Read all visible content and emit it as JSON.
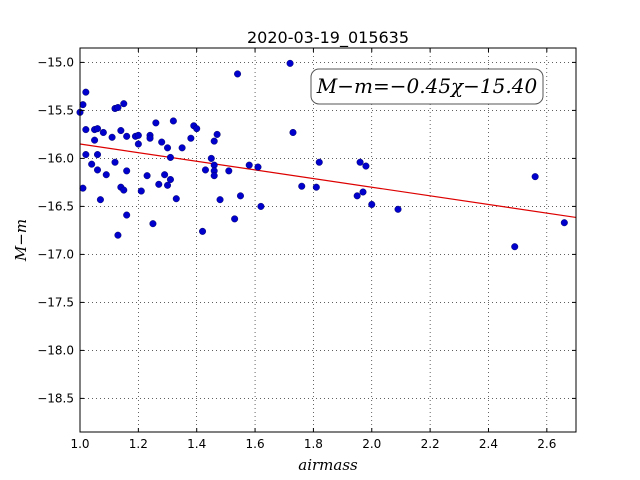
{
  "chart_data": {
    "type": "scatter",
    "title": "2020-03-19_015635",
    "xlabel": "airmass",
    "ylabel": "M−m",
    "xlim": [
      1.0,
      2.7
    ],
    "ylim": [
      -18.85,
      -14.85
    ],
    "y_inverted": false,
    "grid": true,
    "xticks": [
      1.0,
      1.2,
      1.4,
      1.6,
      1.8,
      2.0,
      2.2,
      2.4,
      2.6
    ],
    "xtick_labels": [
      "1.0",
      "1.2",
      "1.4",
      "1.6",
      "1.8",
      "2.0",
      "2.2",
      "2.4",
      "2.6"
    ],
    "yticks": [
      -15.0,
      -15.5,
      -16.0,
      -16.5,
      -17.0,
      -17.5,
      -18.0,
      -18.5
    ],
    "ytick_labels": [
      "−15.0",
      "−15.5",
      "−16.0",
      "−16.5",
      "−17.0",
      "−17.5",
      "−18.0",
      "−18.5"
    ],
    "point_color": "#0000cc",
    "line_color": "#dd0000",
    "fit": {
      "slope": -0.45,
      "intercept": -15.4,
      "x_range": [
        1.0,
        2.7
      ]
    },
    "annotation": "M−m=−0.45χ−15.40",
    "points": [
      [
        1.0,
        -15.52
      ],
      [
        1.01,
        -15.44
      ],
      [
        1.02,
        -15.31
      ],
      [
        1.01,
        -16.31
      ],
      [
        1.02,
        -15.7
      ],
      [
        1.02,
        -15.96
      ],
      [
        1.04,
        -16.06
      ],
      [
        1.05,
        -15.7
      ],
      [
        1.06,
        -15.69
      ],
      [
        1.05,
        -15.81
      ],
      [
        1.06,
        -15.96
      ],
      [
        1.06,
        -16.12
      ],
      [
        1.07,
        -16.43
      ],
      [
        1.08,
        -15.73
      ],
      [
        1.09,
        -16.17
      ],
      [
        1.11,
        -15.78
      ],
      [
        1.12,
        -15.48
      ],
      [
        1.12,
        -16.04
      ],
      [
        1.13,
        -15.47
      ],
      [
        1.14,
        -15.71
      ],
      [
        1.15,
        -15.43
      ],
      [
        1.13,
        -16.8
      ],
      [
        1.14,
        -16.3
      ],
      [
        1.15,
        -16.33
      ],
      [
        1.16,
        -16.59
      ],
      [
        1.16,
        -15.77
      ],
      [
        1.16,
        -16.13
      ],
      [
        1.19,
        -15.77
      ],
      [
        1.2,
        -15.76
      ],
      [
        1.2,
        -15.85
      ],
      [
        1.21,
        -16.34
      ],
      [
        1.23,
        -16.18
      ],
      [
        1.24,
        -15.76
      ],
      [
        1.24,
        -15.79
      ],
      [
        1.25,
        -16.68
      ],
      [
        1.26,
        -15.63
      ],
      [
        1.27,
        -16.27
      ],
      [
        1.28,
        -15.83
      ],
      [
        1.29,
        -16.17
      ],
      [
        1.3,
        -16.28
      ],
      [
        1.3,
        -15.89
      ],
      [
        1.31,
        -16.22
      ],
      [
        1.31,
        -15.99
      ],
      [
        1.32,
        -15.61
      ],
      [
        1.33,
        -16.42
      ],
      [
        1.35,
        -15.89
      ],
      [
        1.38,
        -15.79
      ],
      [
        1.39,
        -15.66
      ],
      [
        1.4,
        -15.69
      ],
      [
        1.42,
        -16.76
      ],
      [
        1.43,
        -16.12
      ],
      [
        1.45,
        -16.0
      ],
      [
        1.46,
        -15.82
      ],
      [
        1.46,
        -16.07
      ],
      [
        1.46,
        -16.13
      ],
      [
        1.46,
        -16.18
      ],
      [
        1.47,
        -15.75
      ],
      [
        1.48,
        -16.43
      ],
      [
        1.51,
        -16.13
      ],
      [
        1.53,
        -16.63
      ],
      [
        1.54,
        -15.12
      ],
      [
        1.55,
        -16.39
      ],
      [
        1.58,
        -16.07
      ],
      [
        1.61,
        -16.09
      ],
      [
        1.62,
        -16.5
      ],
      [
        1.72,
        -15.01
      ],
      [
        1.73,
        -15.73
      ],
      [
        1.76,
        -16.29
      ],
      [
        1.81,
        -16.3
      ],
      [
        1.82,
        -16.04
      ],
      [
        1.95,
        -16.39
      ],
      [
        1.96,
        -16.04
      ],
      [
        1.97,
        -16.35
      ],
      [
        1.98,
        -16.08
      ],
      [
        2.0,
        -16.48
      ],
      [
        2.09,
        -16.53
      ],
      [
        2.49,
        -16.92
      ],
      [
        2.56,
        -16.19
      ],
      [
        2.66,
        -16.67
      ]
    ]
  }
}
